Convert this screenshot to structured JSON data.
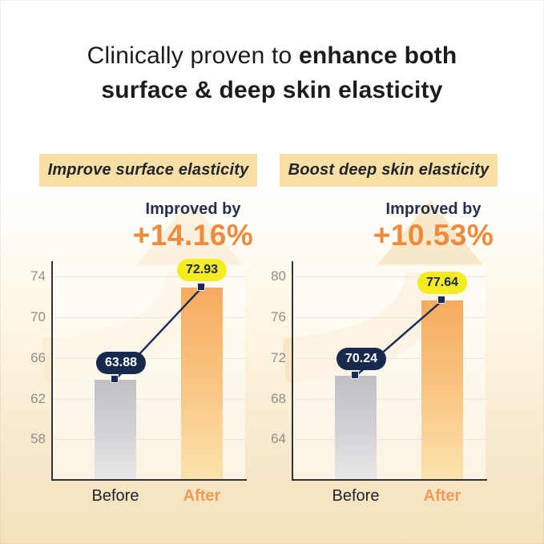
{
  "title": {
    "line1_regular": "Clinically proven to ",
    "line1_bold": "enhance both",
    "line2_bold": "surface & deep skin elasticity"
  },
  "chart_data": [
    {
      "type": "bar",
      "title": "Improve surface elasticity",
      "improved_by_label": "Improved by",
      "improvement_pct": "+14.16%",
      "categories": [
        "Before",
        "After"
      ],
      "values": [
        63.88,
        72.93
      ],
      "yticks": [
        58,
        62,
        66,
        70,
        74
      ],
      "ylim": [
        54.1,
        75.2
      ],
      "grid": true,
      "xlabel": "",
      "ylabel": ""
    },
    {
      "type": "bar",
      "title": "Boost deep skin elasticity",
      "improved_by_label": "Improved by",
      "improvement_pct": "+10.53%",
      "categories": [
        "Before",
        "After"
      ],
      "values": [
        70.24,
        77.64
      ],
      "yticks": [
        64,
        68,
        72,
        76,
        80
      ],
      "ylim": [
        60.1,
        81.2
      ],
      "grid": true,
      "xlabel": "",
      "ylabel": ""
    }
  ],
  "colors": {
    "background_top": "#FFFFFF",
    "background_bottom": "#F4E1B8",
    "accent_orange": "#EF8A3D",
    "navy": "#1A2A52",
    "badge_bg": "#F7DFA6",
    "yellow_pill": "#F5EB21",
    "bar_before_top": "#BFBFC5",
    "bar_before_bottom": "#E7E7E9",
    "bar_after_top": "#F6AB5E",
    "bar_after_bottom": "#FBE3AD",
    "after_label": "#EE9B57",
    "tick_label": "#8F8E88",
    "watermark_arrow": "#F8E5C4"
  }
}
